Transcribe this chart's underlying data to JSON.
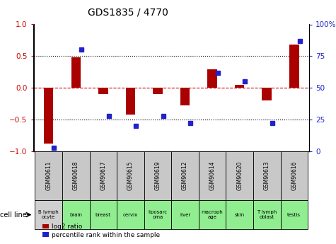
{
  "title": "GDS1835 / 4770",
  "samples": [
    "GSM90611",
    "GSM90618",
    "GSM90617",
    "GSM90615",
    "GSM90619",
    "GSM90612",
    "GSM90614",
    "GSM90620",
    "GSM90613",
    "GSM90616"
  ],
  "cell_lines": [
    "B lymph\nocyte",
    "brain",
    "breast",
    "cervix",
    "liposarc\noma",
    "liver",
    "macroph\nage",
    "skin",
    "T lymph\noblast",
    "testis"
  ],
  "cell_bg": [
    "#d0d0d0",
    "#90ee90",
    "#90ee90",
    "#90ee90",
    "#90ee90",
    "#90ee90",
    "#90ee90",
    "#90ee90",
    "#90ee90",
    "#90ee90"
  ],
  "log2_ratio": [
    -0.88,
    0.48,
    -0.1,
    -0.42,
    -0.1,
    -0.28,
    0.29,
    0.05,
    -0.2,
    0.68
  ],
  "percentile_rank": [
    3,
    80,
    28,
    20,
    28,
    22,
    62,
    55,
    22,
    87
  ],
  "bar_color": "#aa0000",
  "dot_color": "#2222cc",
  "sample_bg": "#c8c8c8",
  "ylim_left": [
    -1,
    1
  ],
  "ylim_right": [
    0,
    100
  ],
  "yticks_left": [
    -1,
    -0.5,
    0,
    0.5,
    1
  ],
  "yticks_right": [
    0,
    25,
    50,
    75,
    100
  ],
  "legend_bar": "log2 ratio",
  "legend_dot": "percentile rank within the sample",
  "cell_line_label": "cell line",
  "bar_width": 0.35
}
